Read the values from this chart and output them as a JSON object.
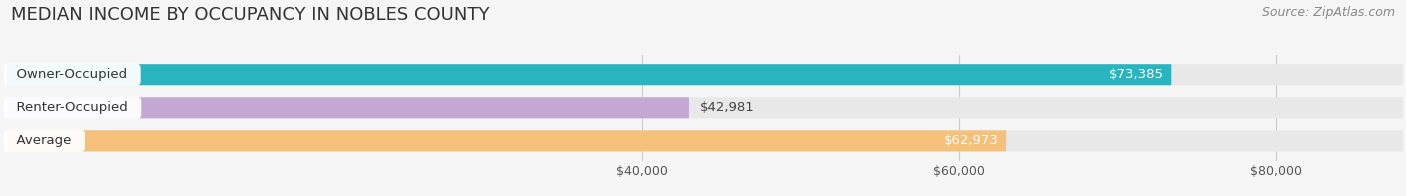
{
  "title": "MEDIAN INCOME BY OCCUPANCY IN NOBLES COUNTY",
  "source": "Source: ZipAtlas.com",
  "categories": [
    "Owner-Occupied",
    "Renter-Occupied",
    "Average"
  ],
  "values": [
    73385,
    42981,
    62973
  ],
  "labels": [
    "$73,385",
    "$42,981",
    "$62,973"
  ],
  "bar_colors": [
    "#28b5bf",
    "#c4a8d4",
    "#f5c07a"
  ],
  "bar_bg_color": "#e8e8e8",
  "xmin": 0,
  "xmax": 88000,
  "xticks": [
    40000,
    60000,
    80000
  ],
  "xticklabels": [
    "$40,000",
    "$60,000",
    "$80,000"
  ],
  "title_fontsize": 13,
  "source_fontsize": 9,
  "tick_fontsize": 9,
  "label_fontsize": 9.5,
  "cat_fontsize": 9.5,
  "bar_height": 0.62,
  "background_color": "#f5f5f5",
  "bar_spacing": 1.0,
  "label_color_inside": "white",
  "label_color_outside": "#444444"
}
